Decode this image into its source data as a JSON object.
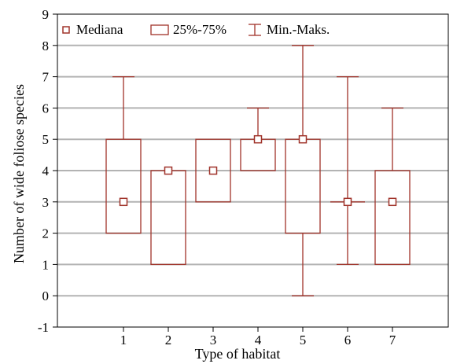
{
  "chart_data": {
    "type": "boxplot",
    "title": "",
    "xlabel": "Type of habitat",
    "ylabel": "Number of wide foliose species",
    "categories": [
      "1",
      "2",
      "3",
      "4",
      "5",
      "6",
      "7"
    ],
    "ylim": [
      -1,
      9
    ],
    "yticks": [
      "9",
      "8",
      "7",
      "6",
      "5",
      "4",
      "3",
      "2",
      "1",
      "0",
      "-1"
    ],
    "ytick_values": [
      9,
      8,
      7,
      6,
      5,
      4,
      3,
      2,
      1,
      0,
      -1
    ],
    "grid": true,
    "legend_position": "top",
    "legend": {
      "median_label": "Mediana",
      "box_label": "25%-75%",
      "whisker_label": "Min.-Maks."
    },
    "series": [
      {
        "category": "1",
        "min": 2,
        "q1": 2,
        "median": 3,
        "q3": 5,
        "max": 7
      },
      {
        "category": "2",
        "min": 1,
        "q1": 1,
        "median": 4,
        "q3": 4,
        "max": 4
      },
      {
        "category": "3",
        "min": 3,
        "q1": 3,
        "median": 4,
        "q3": 5,
        "max": 5
      },
      {
        "category": "4",
        "min": 4,
        "q1": 4,
        "median": 5,
        "q3": 5,
        "max": 6
      },
      {
        "category": "5",
        "min": 0,
        "q1": 2,
        "median": 5,
        "q3": 5,
        "max": 8
      },
      {
        "category": "6",
        "min": 1,
        "q1": 3,
        "median": 3,
        "q3": 3,
        "max": 7
      },
      {
        "category": "7",
        "min": 1,
        "q1": 1,
        "median": 3,
        "q3": 4,
        "max": 6
      }
    ],
    "colors": {
      "box": "#a0332a",
      "grid": "#b3b3b3",
      "axis": "#000000"
    }
  }
}
